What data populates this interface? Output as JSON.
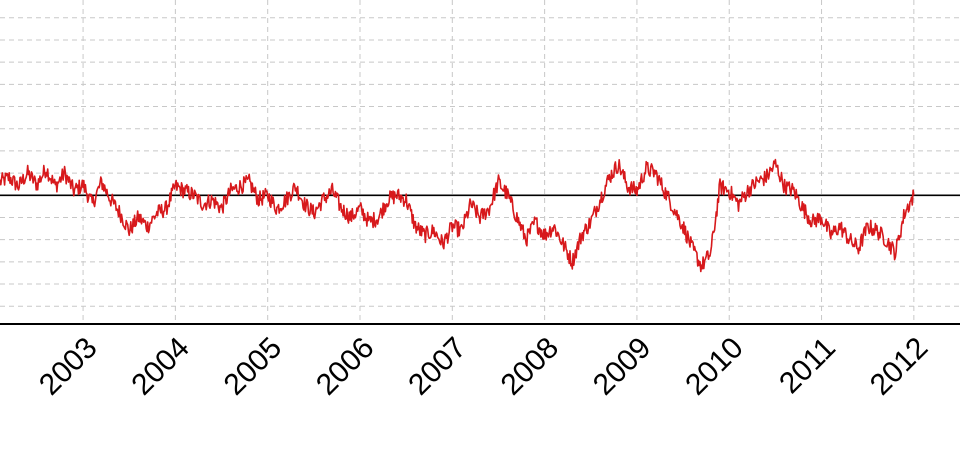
{
  "chart_data": {
    "type": "line",
    "title": "",
    "xlabel": "",
    "ylabel": "",
    "x_tick_labels": [
      "2003",
      "2004",
      "2005",
      "2006",
      "2007",
      "2008",
      "2009",
      "2010",
      "2011",
      "2012"
    ],
    "x_range": [
      2002.1,
      2012.5
    ],
    "y_range": [
      -1.45,
      2.2
    ],
    "reference_line": 0,
    "grid": true,
    "color": "#d7191c",
    "series": [
      {
        "x": [
          2002.1,
          2002.2,
          2002.3,
          2002.4,
          2002.5,
          2002.6,
          2002.7,
          2002.8,
          2002.9,
          2003.0,
          2003.1,
          2003.2,
          2003.3,
          2003.4,
          2003.5,
          2003.6,
          2003.7,
          2003.8,
          2003.9,
          2004.0,
          2004.1,
          2004.2,
          2004.3,
          2004.4,
          2004.5,
          2004.6,
          2004.7,
          2004.8,
          2004.9,
          2005.0,
          2005.1,
          2005.2,
          2005.3,
          2005.4,
          2005.5,
          2005.6,
          2005.7,
          2005.8,
          2005.9,
          2006.0,
          2006.1,
          2006.2,
          2006.3,
          2006.4,
          2006.5,
          2006.6,
          2006.7,
          2006.8,
          2006.9,
          2007.0,
          2007.1,
          2007.2,
          2007.3,
          2007.4,
          2007.5,
          2007.6,
          2007.7,
          2007.8,
          2007.9,
          2008.0,
          2008.1,
          2008.2,
          2008.3,
          2008.4,
          2008.5,
          2008.6,
          2008.7,
          2008.8,
          2008.9,
          2009.0,
          2009.1,
          2009.2,
          2009.3,
          2009.4,
          2009.5,
          2009.6,
          2009.7,
          2009.8,
          2009.9,
          2010.0,
          2010.1,
          2010.2,
          2010.3,
          2010.4,
          2010.5,
          2010.6,
          2010.7,
          2010.8,
          2010.9,
          2011.0,
          2011.1,
          2011.2,
          2011.3,
          2011.4,
          2011.5,
          2011.6,
          2011.7,
          2011.8,
          2011.9,
          2012.0
        ],
        "values": [
          0.15,
          0.2,
          0.1,
          0.25,
          0.12,
          0.3,
          0.1,
          0.25,
          0.05,
          0.12,
          -0.1,
          0.15,
          -0.05,
          -0.2,
          -0.4,
          -0.25,
          -0.35,
          -0.2,
          -0.15,
          0.1,
          0.05,
          0.0,
          -0.1,
          -0.05,
          -0.15,
          0.05,
          0.1,
          0.15,
          -0.05,
          0.0,
          -0.15,
          -0.05,
          0.1,
          -0.1,
          -0.2,
          -0.05,
          0.05,
          -0.15,
          -0.25,
          -0.15,
          -0.3,
          -0.25,
          -0.05,
          0.0,
          -0.05,
          -0.35,
          -0.45,
          -0.4,
          -0.55,
          -0.35,
          -0.4,
          -0.1,
          -0.25,
          -0.15,
          0.15,
          0.0,
          -0.25,
          -0.5,
          -0.3,
          -0.45,
          -0.35,
          -0.55,
          -0.75,
          -0.45,
          -0.3,
          -0.05,
          0.2,
          0.35,
          0.1,
          0.05,
          0.3,
          0.25,
          0.05,
          -0.15,
          -0.35,
          -0.6,
          -0.8,
          -0.65,
          0.1,
          0.05,
          -0.1,
          0.05,
          0.15,
          0.2,
          0.35,
          0.1,
          0.05,
          -0.15,
          -0.3,
          -0.25,
          -0.45,
          -0.35,
          -0.5,
          -0.6,
          -0.35,
          -0.4,
          -0.5,
          -0.65,
          -0.2,
          0.0
        ]
      }
    ]
  }
}
